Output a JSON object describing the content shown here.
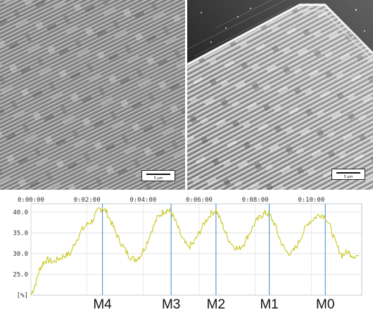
{
  "sem_images": [
    {
      "name": "left",
      "scalebar_label": "5 µm"
    },
    {
      "name": "right",
      "scalebar_label": "5 µm"
    }
  ],
  "chart_data": {
    "type": "line",
    "title": "",
    "xlabel": "",
    "ylabel": "",
    "y_unit_label": "[%]",
    "x_tick_labels": [
      "0:00:00",
      "0:02:00",
      "0:04:00",
      "0:06:00",
      "0:08:00",
      "0:10:00"
    ],
    "y_tick_labels": [
      "25.0",
      "30.0",
      "35.0",
      "40.0"
    ],
    "ylim": [
      20,
      42
    ],
    "xlim_minutes": [
      0,
      11.8
    ],
    "grid": true,
    "line_color": "#c8c820",
    "marker_color": "#5b9bd5",
    "markers": [
      {
        "label": "M4",
        "x_minutes": 2.55
      },
      {
        "label": "M3",
        "x_minutes": 5.0
      },
      {
        "label": "M2",
        "x_minutes": 6.6
      },
      {
        "label": "M1",
        "x_minutes": 8.5
      },
      {
        "label": "M0",
        "x_minutes": 10.5
      }
    ],
    "series": [
      {
        "x_minutes": [
          0.0,
          0.15,
          0.3,
          0.45,
          0.6,
          0.8,
          1.0,
          1.2,
          1.4,
          1.6,
          1.8,
          2.0,
          2.2,
          2.4,
          2.55,
          2.7,
          2.9,
          3.1,
          3.3,
          3.5,
          3.7,
          3.9,
          4.1,
          4.3,
          4.5,
          4.7,
          4.85,
          5.0,
          5.2,
          5.4,
          5.6,
          5.8,
          6.0,
          6.2,
          6.4,
          6.6,
          6.8,
          7.0,
          7.2,
          7.4,
          7.6,
          7.8,
          8.0,
          8.2,
          8.35,
          8.5,
          8.7,
          8.9,
          9.1,
          9.3,
          9.5,
          9.7,
          9.9,
          10.1,
          10.3,
          10.5,
          10.7,
          10.9,
          11.1,
          11.3,
          11.5,
          11.7
        ],
        "values": [
          20.0,
          22.5,
          26.0,
          28.0,
          28.5,
          28.0,
          28.8,
          29.5,
          30.0,
          33.0,
          35.5,
          37.0,
          38.0,
          40.5,
          41.0,
          40.0,
          37.0,
          34.0,
          31.5,
          29.5,
          28.5,
          29.5,
          32.0,
          35.5,
          38.5,
          40.0,
          40.5,
          40.0,
          37.0,
          33.5,
          31.5,
          32.5,
          35.0,
          37.5,
          39.5,
          40.5,
          37.5,
          34.0,
          32.0,
          31.0,
          32.5,
          35.0,
          37.5,
          39.0,
          39.8,
          39.5,
          37.0,
          33.0,
          30.5,
          30.0,
          32.0,
          35.0,
          37.5,
          38.5,
          39.5,
          39.0,
          36.0,
          32.0,
          29.5,
          30.5,
          29.5,
          29.5
        ]
      }
    ]
  }
}
